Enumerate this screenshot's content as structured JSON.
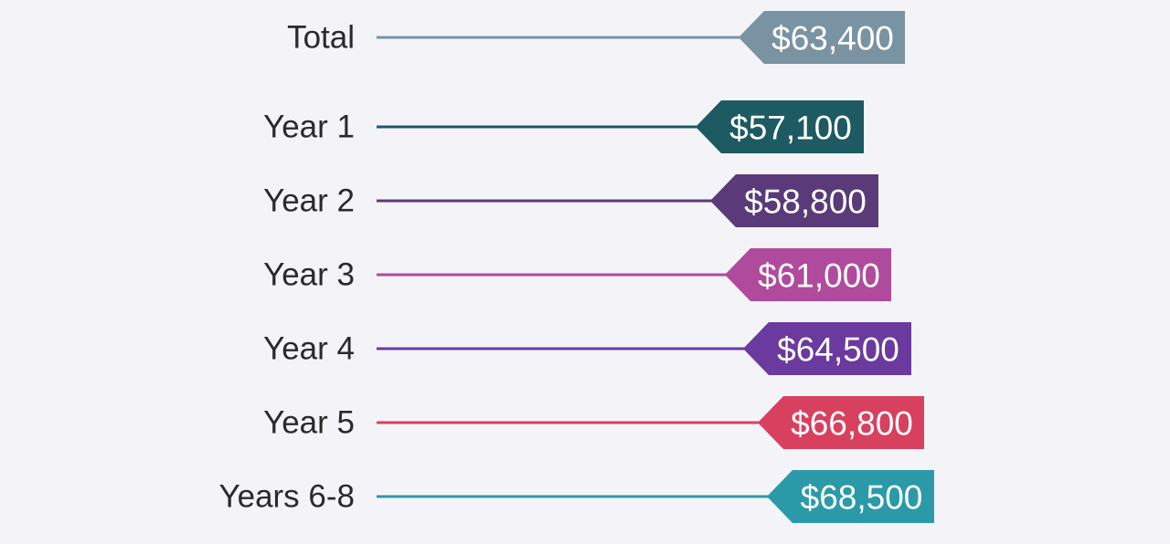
{
  "chart_data": {
    "type": "bar",
    "categories": [
      "Total",
      "Year 1",
      "Year 2",
      "Year 3",
      "Year 4",
      "Year 5",
      "Years 6-8"
    ],
    "values": [
      63400,
      57100,
      58800,
      61000,
      64500,
      66800,
      68500
    ],
    "value_labels": [
      "$63,400",
      "$57,100",
      "$58,800",
      "$61,000",
      "$64,500",
      "$66,800",
      "$68,500"
    ],
    "colors": [
      "#7a93a3",
      "#1e5a62",
      "#5a3a78",
      "#b04a9c",
      "#6a3a9e",
      "#d8405f",
      "#2a9aa8"
    ],
    "title": "",
    "xlabel": "",
    "ylabel": "",
    "grid": false,
    "legend": "none"
  }
}
